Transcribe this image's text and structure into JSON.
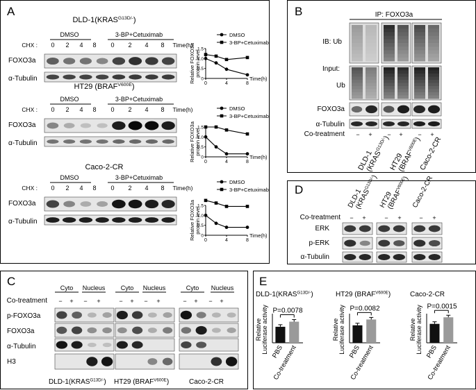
{
  "panel_a": {
    "letter": "A",
    "sections": [
      {
        "title_main": "DLD-1(KRAS",
        "title_sup": "G13D/-",
        "title_end": ")",
        "group1": "DMSO",
        "group2": "3-BP+Cetuximab",
        "cycloheximide_label": "CHX :",
        "timepoints": [
          "0",
          "2",
          "4",
          "8",
          "0",
          "2",
          "4",
          "8"
        ],
        "time_unit": "Time(h)",
        "blots": [
          "FOXO3a",
          "α-Tubulin"
        ]
      },
      {
        "title_main": "HT29 (BRAF",
        "title_sup": "V600E",
        "title_end": ")",
        "group1": "DMSO",
        "group2": "3-BP+Cetuximab",
        "cycloheximide_label": "CHX :",
        "timepoints": [
          "0",
          "2",
          "4",
          "8",
          "0",
          "2",
          "4",
          "8"
        ],
        "time_unit": "Time(h)",
        "blots": [
          "FOXO3a",
          "α-Tubulin"
        ]
      },
      {
        "title_main": "Caco-2-CR",
        "title_sup": "",
        "title_end": "",
        "group1": "DMSO",
        "group2": "3-BP+Cetuximab",
        "cycloheximide_label": "CHX :",
        "timepoints": [
          "0",
          "2",
          "4",
          "8",
          "0",
          "2",
          "4",
          "8"
        ],
        "time_unit": "Time(h)",
        "blots": [
          "FOXO3a",
          "α-Tubulin"
        ]
      }
    ]
  },
  "chart_data": [
    {
      "type": "line",
      "ylabel": "Relative FOXO3a protein level",
      "xlabel": "Time(h)",
      "x": [
        0,
        2,
        4,
        8
      ],
      "xticks": [
        "0",
        "4",
        "8"
      ],
      "yticks": [
        "0",
        "0.5",
        "1.0",
        "1.5"
      ],
      "ylim": [
        0,
        1.5
      ],
      "series": [
        {
          "name": "DMSO",
          "marker": "circle",
          "values": [
            1.0,
            0.78,
            0.46,
            0.18
          ]
        },
        {
          "name": "3-BP+Cetuximab",
          "marker": "square",
          "values": [
            1.2,
            1.12,
            0.95,
            1.05
          ]
        }
      ]
    },
    {
      "type": "line",
      "ylabel": "Relative FOXO3a protein level",
      "xlabel": "Time(h)",
      "x": [
        0,
        2,
        4,
        8
      ],
      "xticks": [
        "0",
        "4",
        "8"
      ],
      "yticks": [
        "0",
        "0.5",
        "1.0",
        "1.5"
      ],
      "ylim": [
        0,
        1.5
      ],
      "series": [
        {
          "name": "DMSO",
          "marker": "circle",
          "values": [
            1.0,
            0.5,
            0.15,
            0.15
          ]
        },
        {
          "name": "3-BP+Cetuximab",
          "marker": "square",
          "values": [
            1.5,
            1.5,
            1.35,
            1.15
          ]
        }
      ]
    },
    {
      "type": "line",
      "ylabel": "Relative FOXO3a protein level",
      "xlabel": "Time(h)",
      "x": [
        0,
        2,
        4,
        8
      ],
      "xticks": [
        "0",
        "4",
        "8"
      ],
      "yticks": [
        "0",
        "0.5",
        "1.0",
        "1.5"
      ],
      "ylim": [
        0,
        1.5
      ],
      "series": [
        {
          "name": "DMSO",
          "marker": "circle",
          "values": [
            1.0,
            0.6,
            0.4,
            0.4
          ]
        },
        {
          "name": "3-BP+Cetuximab",
          "marker": "square",
          "values": [
            1.75,
            1.62,
            1.45,
            1.45
          ]
        }
      ]
    },
    {
      "type": "bar",
      "title": "DLD-1(KRASG13D/-)",
      "ylabel": "Relative Luciferase activity",
      "categories": [
        "PBS",
        "Co-treatment"
      ],
      "values": [
        1.1,
        1.45
      ],
      "pvalue": "P=0.0078"
    },
    {
      "type": "bar",
      "title": "HT29 (BRAFV600E)",
      "ylabel": "Relative Luciferase activity",
      "categories": [
        "PBS",
        "Co-treatment"
      ],
      "values": [
        1.2,
        1.6
      ],
      "pvalue": "P=0.0082"
    },
    {
      "type": "bar",
      "title": "Caco-2-CR",
      "ylabel": "Relative Luciferase activity",
      "categories": [
        "PBS",
        "Co-treatment"
      ],
      "values": [
        1.3,
        1.75
      ],
      "pvalue": "P=0.0015"
    }
  ],
  "panel_b": {
    "letter": "B",
    "ip_label": "IP: FOXO3a",
    "ib_label": "IB: Ub",
    "input_label": "Input:",
    "ub_label": "Ub",
    "foxo3a_label": "FOXO3a",
    "tubulin_label": "α-Tubulin",
    "cotreat_label": "Co-treatment",
    "signs": [
      "−",
      "+",
      "−",
      "+",
      "−",
      "+"
    ],
    "cells": [
      {
        "line1": "DLD-1",
        "line2_main": "(KRAS",
        "line2_sup": "G13D/-",
        "line2_end": ")"
      },
      {
        "line1": "HT29",
        "line2_main": "(BRAF",
        "line2_sup": "V600E",
        "line2_end": ")"
      },
      {
        "line1": "Caco-2-CR",
        "line2_main": "",
        "line2_sup": "",
        "line2_end": ""
      }
    ]
  },
  "panel_c": {
    "letter": "C",
    "fractions": [
      "Cyto",
      "Nucleus",
      "Cyto",
      "Nucleus",
      "Cyto",
      "Nucleus"
    ],
    "cotreat_label": "Co-treatment",
    "signs": [
      "−",
      "+",
      "−",
      "+",
      "−",
      "+",
      "−",
      "+",
      "−",
      "+",
      "−",
      "+"
    ],
    "blots": [
      "p-FOXO3a",
      "FOXO3a",
      "α-Tubulin",
      "H3"
    ],
    "cells": [
      {
        "main": "DLD-1(KRAS",
        "sup": "G13D/-",
        "end": ")"
      },
      {
        "main": "HT29 (BRAF",
        "sup": "V600E",
        "end": ")"
      },
      {
        "main": "Caco-2-CR",
        "sup": "",
        "end": ""
      }
    ]
  },
  "panel_d": {
    "letter": "D",
    "cotreat_label": "Co-treatment",
    "signs": [
      "−",
      "+",
      "−",
      "+",
      "−",
      "+"
    ],
    "blots": [
      "ERK",
      "p-ERK",
      "α-Tubulin"
    ],
    "cells": [
      {
        "line1": "DLD-1",
        "line2_main": "(KRAS",
        "line2_sup": "G13D/-",
        "line2_end": ")"
      },
      {
        "line1": "HT29",
        "line2_main": "(BRAF",
        "line2_sup": "V600E",
        "line2_end": ")"
      },
      {
        "line1": "Caco-2-CR",
        "line2_main": "",
        "line2_sup": "",
        "line2_end": ""
      }
    ]
  },
  "panel_e": {
    "letter": "E",
    "titles": [
      {
        "main": "DLD-1(KRAS",
        "sup": "G13D/-",
        "end": ")"
      },
      {
        "main": "HT29 (BRAF",
        "sup": "V600E",
        "end": ")"
      },
      {
        "main": "Caco-2-CR",
        "sup": "",
        "end": ""
      }
    ]
  }
}
